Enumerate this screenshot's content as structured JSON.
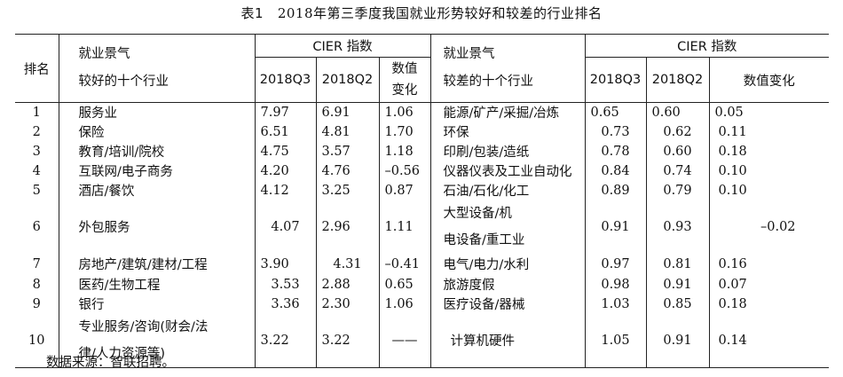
{
  "caption": {
    "label": "表1",
    "text": "2018年第三季度我国就业形势较好和较差的行业排名"
  },
  "header": {
    "rank": "排名",
    "good_line1": "就业景气",
    "good_line2": "较好的十个行业",
    "cier": "CIER 指数",
    "q3": "2018Q3",
    "q2": "2018Q2",
    "change_line1": "数值",
    "change_line2": "变化",
    "bad_line1": "就业景气",
    "bad_line2": "较差的十个行业",
    "change_full": "数值变化"
  },
  "rows": [
    {
      "rank": "1",
      "good": "服务业",
      "g_q3": "7.97",
      "g_q2": "6.91",
      "g_chg": "1.06",
      "bad": "能源/矿产/采掘/冶炼",
      "b_q3": "0.65",
      "b_q2": "0.60",
      "b_chg": "0.05"
    },
    {
      "rank": "2",
      "good": "保险",
      "g_q3": "6.51",
      "g_q2": "4.81",
      "g_chg": "1.70",
      "bad": "环保",
      "b_q3": "0.73",
      "b_q2": "0.62",
      "b_chg": "0.11"
    },
    {
      "rank": "3",
      "good": "教育/培训/院校",
      "g_q3": "4.75",
      "g_q2": "3.57",
      "g_chg": "1.18",
      "bad": "印刷/包装/造纸",
      "b_q3": "0.78",
      "b_q2": "0.60",
      "b_chg": "0.18"
    },
    {
      "rank": "4",
      "good": "互联网/电子商务",
      "g_q3": "4.20",
      "g_q2": "4.76",
      "g_chg": "–0.56",
      "bad": "仪器仪表及工业自动化",
      "b_q3": "0.84",
      "b_q2": "0.74",
      "b_chg": "0.10"
    },
    {
      "rank": "5",
      "good": "酒店/餐饮",
      "g_q3": "4.12",
      "g_q2": "3.25",
      "g_chg": "0.87",
      "bad": "石油/石化/化工",
      "b_q3": "0.89",
      "b_q2": "0.79",
      "b_chg": "0.10"
    },
    {
      "rank": "6",
      "good": "外包服务",
      "g_q3": "4.07",
      "g_q2": "2.96",
      "g_chg": "1.11",
      "bad_line1": "大型设备/机",
      "bad_line2": "电设备/重工业",
      "b_q3": "0.91",
      "b_q2": "0.93",
      "b_chg": "–0.02"
    },
    {
      "rank": "7",
      "good": "房地产/建筑/建材/工程",
      "g_q3": "3.90",
      "g_q2": "4.31",
      "g_chg": "–0.41",
      "bad": "电气/电力/水利",
      "b_q3": "0.97",
      "b_q2": "0.81",
      "b_chg": "0.16"
    },
    {
      "rank": "8",
      "good": "医药/生物工程",
      "g_q3": "3.53",
      "g_q2": "2.88",
      "g_chg": "0.65",
      "bad": "旅游度假",
      "b_q3": "0.98",
      "b_q2": "0.91",
      "b_chg": "0.07"
    },
    {
      "rank": "9",
      "good": "银行",
      "g_q3": "3.36",
      "g_q2": "2.30",
      "g_chg": "1.06",
      "bad": "医疗设备/器械",
      "b_q3": "1.03",
      "b_q2": "0.85",
      "b_chg": "0.18"
    },
    {
      "rank": "10",
      "good_line1": "专业服务/咨询(财会/法",
      "good_line2": "律/人力资源等)",
      "g_q3": "3.22",
      "g_q2": "3.22",
      "g_chg": "——",
      "bad": "计算机硬件",
      "b_q3": "1.05",
      "b_q2": "0.91",
      "b_chg": "0.14"
    }
  ],
  "note": "数据来源：智联招聘。"
}
